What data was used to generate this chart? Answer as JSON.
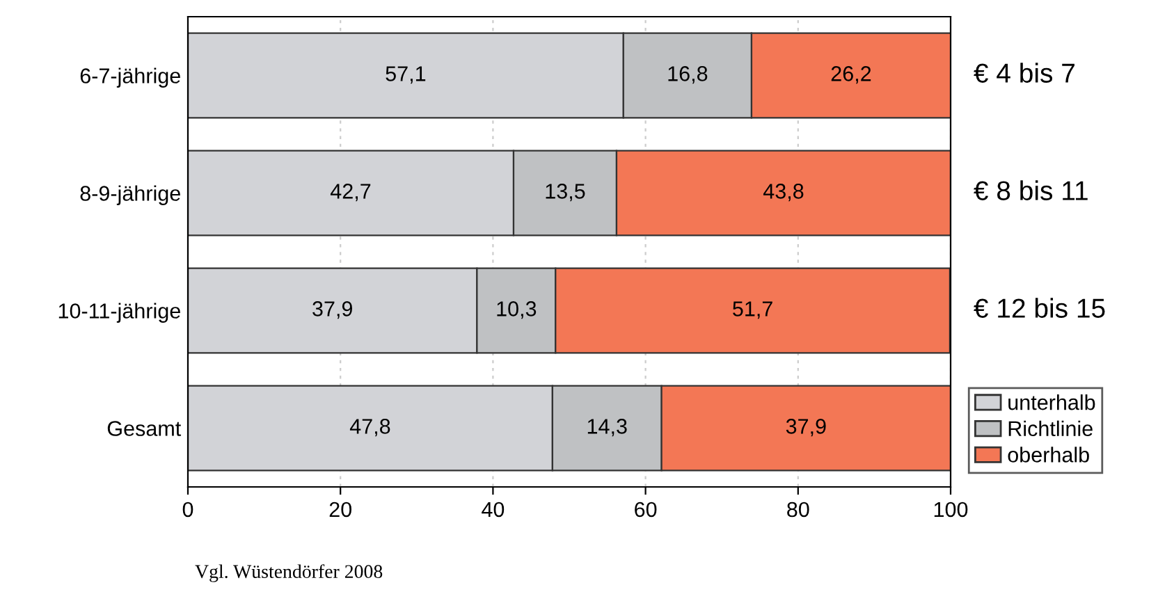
{
  "chart_data": {
    "type": "bar",
    "orientation": "horizontal",
    "stacked": true,
    "categories": [
      "6-7-jährige",
      "8-9-jährige",
      "10-11-jährige",
      "Gesamt"
    ],
    "series": [
      {
        "name": "unterhalb",
        "color": "#d2d3d7",
        "values": [
          57.1,
          42.7,
          37.9,
          47.8
        ],
        "value_labels": [
          "57,1",
          "42,7",
          "37,9",
          "47,8"
        ]
      },
      {
        "name": "Richtlinie",
        "color": "#bfc1c3",
        "values": [
          16.8,
          13.5,
          10.3,
          14.3
        ],
        "value_labels": [
          "16,8",
          "13,5",
          "10,3",
          "14,3"
        ]
      },
      {
        "name": "oberhalb",
        "color": "#f37755",
        "values": [
          26.2,
          43.8,
          51.7,
          37.9
        ],
        "value_labels": [
          "26,2",
          "43,8",
          "51,7",
          "37,9"
        ]
      }
    ],
    "xlim": [
      0,
      100
    ],
    "xticks": [
      0,
      20,
      40,
      60,
      80,
      100
    ],
    "grid": "x",
    "legend": "right",
    "annotations": [
      "€ 4 bis 7",
      "€ 8 bis 11",
      "€ 12 bis 15",
      "Vgl. Wüstendörfer 2008"
    ]
  }
}
